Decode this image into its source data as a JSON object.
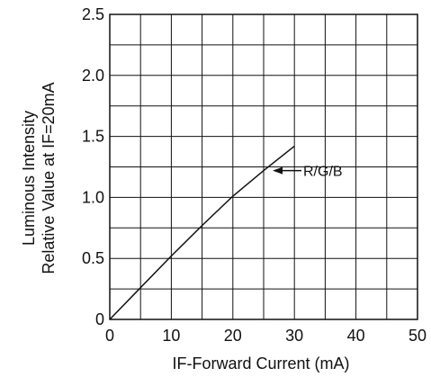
{
  "chart_data": {
    "type": "line",
    "title": "",
    "xlabel": "IF-Forward Current (mA)",
    "ylabel_lines": [
      "Luminous Intensity",
      "Relative Value at IF=20mA"
    ],
    "xlim": [
      0,
      50
    ],
    "ylim": [
      0,
      2.5
    ],
    "x_ticks": [
      0,
      10,
      20,
      30,
      40,
      50
    ],
    "y_ticks": [
      0,
      0.5,
      1.0,
      1.5,
      2.0,
      2.5
    ],
    "x_tick_labels": [
      "0",
      "10",
      "20",
      "30",
      "40",
      "50"
    ],
    "y_tick_labels": [
      "0",
      "0.5",
      "1.0",
      "1.5",
      "2.0",
      "2.5"
    ],
    "grid": true,
    "series": [
      {
        "name": "R/G/B",
        "x": [
          0,
          5,
          10,
          15,
          20,
          25,
          30
        ],
        "y": [
          0,
          0.26,
          0.52,
          0.77,
          1.01,
          1.22,
          1.42
        ]
      }
    ],
    "annotations": [
      {
        "text": "R/G/B",
        "points_to": {
          "x": 25,
          "y": 1.22
        }
      }
    ]
  }
}
